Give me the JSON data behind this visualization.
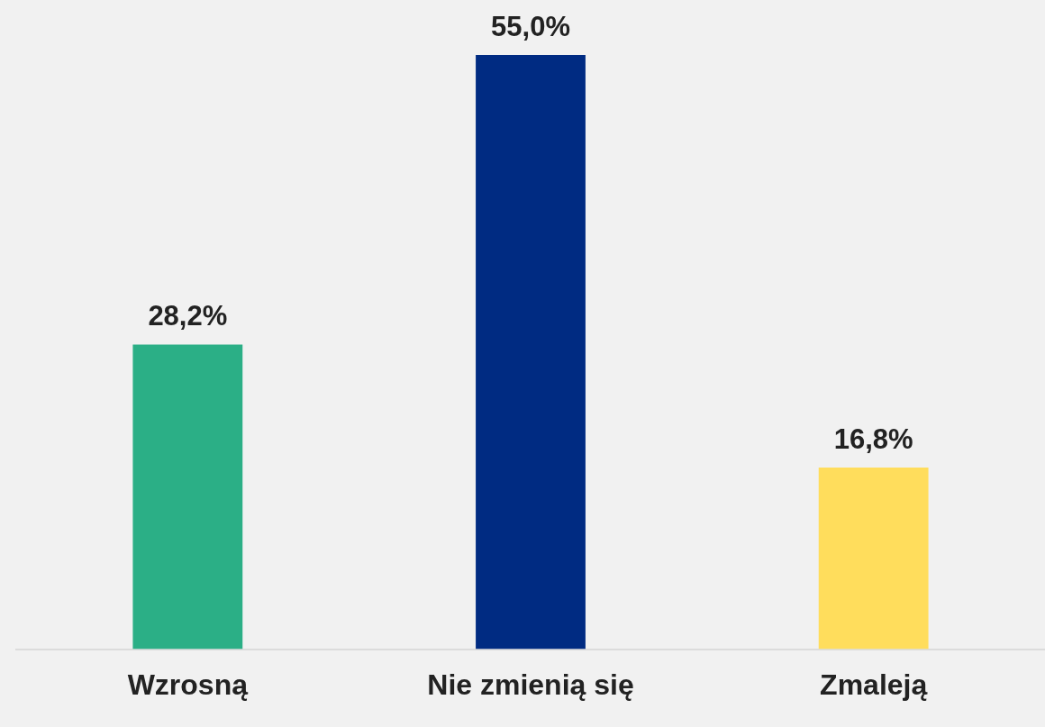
{
  "chart_data": {
    "type": "bar",
    "categories": [
      "Wzrosną",
      "Nie zmienią się",
      "Zmaleją"
    ],
    "values": [
      28.2,
      55.0,
      16.8
    ],
    "colors": [
      "#2baf86",
      "#002b82",
      "#ffdd5c"
    ],
    "value_labels": [
      "28,2%",
      "55,0%",
      "16,8%"
    ],
    "grid": false,
    "legend": false
  }
}
